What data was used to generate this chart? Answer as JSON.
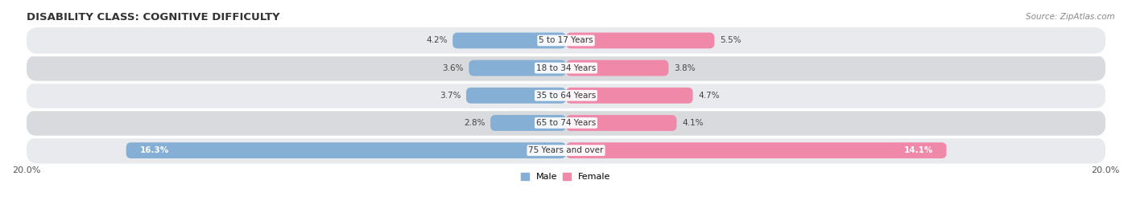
{
  "title": "DISABILITY CLASS: COGNITIVE DIFFICULTY",
  "source": "Source: ZipAtlas.com",
  "categories": [
    "5 to 17 Years",
    "18 to 34 Years",
    "35 to 64 Years",
    "65 to 74 Years",
    "75 Years and over"
  ],
  "male_values": [
    4.2,
    3.6,
    3.7,
    2.8,
    16.3
  ],
  "female_values": [
    5.5,
    3.8,
    4.7,
    4.1,
    14.1
  ],
  "male_color": "#85afd4",
  "female_color": "#f088aa",
  "male_label": "Male",
  "female_label": "Female",
  "axis_max": 20.0,
  "x_tick_label_left": "20.0%",
  "x_tick_label_right": "20.0%",
  "bar_height": 0.58,
  "row_bg_light": "#e8eaed",
  "row_bg_dark": "#d8dadd",
  "row_divider": "#ffffff",
  "title_fontsize": 9.5,
  "source_fontsize": 7.5,
  "label_fontsize": 8,
  "category_fontsize": 7.5,
  "value_fontsize": 7.5,
  "background_color": "#ffffff"
}
